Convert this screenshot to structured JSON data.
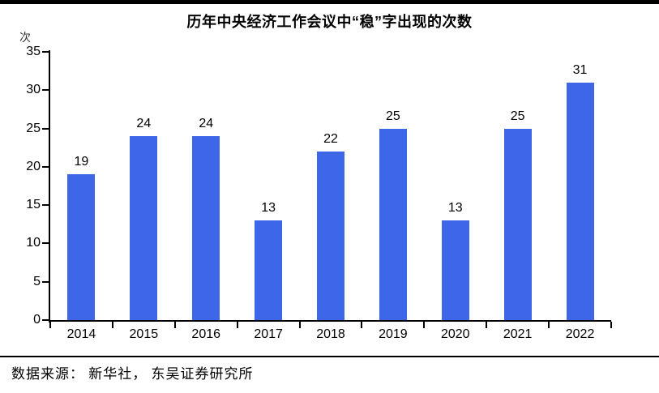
{
  "chart_data": {
    "type": "bar",
    "title": "历年中央经济工作会议中“稳”字出现的次数",
    "unit_label": "次",
    "categories": [
      "2014",
      "2015",
      "2016",
      "2017",
      "2018",
      "2019",
      "2020",
      "2021",
      "2022"
    ],
    "values": [
      19,
      24,
      24,
      13,
      22,
      25,
      13,
      25,
      31
    ],
    "ylim": [
      0,
      35
    ],
    "yticks": [
      0,
      5,
      10,
      15,
      20,
      25,
      30,
      35
    ],
    "bar_color": "#3D66E8",
    "axis_color": "#000000",
    "grid": false,
    "data_labels": true,
    "legend_position": "none",
    "xlabel": "",
    "ylabel": "次"
  },
  "footer": {
    "source_text": "数据来源： 新华社， 东吴证券研究所"
  }
}
